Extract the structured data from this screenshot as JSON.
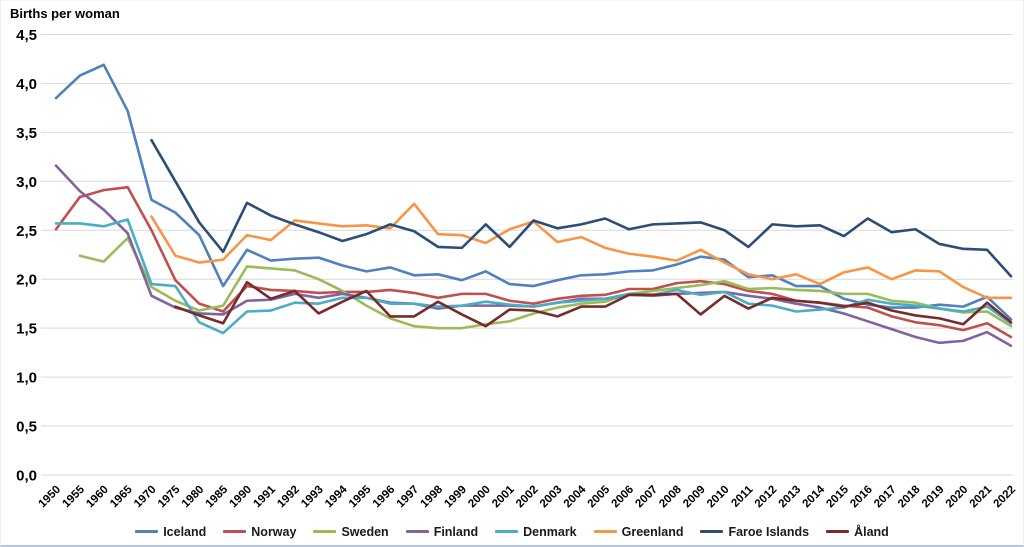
{
  "chart_data": {
    "type": "line",
    "title": "Births per woman",
    "grid": "horizontal",
    "grid_color": "#d9d9d9",
    "legend_position": "bottom",
    "x_tick_rotation": 45,
    "ylim": [
      0,
      4.5
    ],
    "y_ticks": [
      {
        "value": 0.0,
        "label": "0,0"
      },
      {
        "value": 0.5,
        "label": "0,5"
      },
      {
        "value": 1.0,
        "label": "1,0"
      },
      {
        "value": 1.5,
        "label": "1,5"
      },
      {
        "value": 2.0,
        "label": "2,0"
      },
      {
        "value": 2.5,
        "label": "2,5"
      },
      {
        "value": 3.0,
        "label": "3,0"
      },
      {
        "value": 3.5,
        "label": "3,5"
      },
      {
        "value": 4.0,
        "label": "4,0"
      },
      {
        "value": 4.5,
        "label": "4,5"
      }
    ],
    "categories": [
      "1950",
      "1955",
      "1960",
      "1965",
      "1970",
      "1975",
      "1980",
      "1985",
      "1990",
      "1991",
      "1992",
      "1993",
      "1994",
      "1995",
      "1996",
      "1997",
      "1998",
      "1999",
      "2000",
      "2001",
      "2002",
      "2003",
      "2004",
      "2005",
      "2006",
      "2007",
      "2008",
      "2009",
      "2010",
      "2011",
      "2012",
      "2013",
      "2014",
      "2015",
      "2016",
      "2017",
      "2018",
      "2019",
      "2020",
      "2021",
      "2022"
    ],
    "series": [
      {
        "name": "Iceland",
        "color": "#4F81BD",
        "values": [
          3.85,
          4.08,
          4.19,
          3.72,
          2.81,
          2.68,
          2.45,
          1.93,
          2.3,
          2.19,
          2.21,
          2.22,
          2.14,
          2.08,
          2.12,
          2.04,
          2.05,
          1.99,
          2.08,
          1.95,
          1.93,
          1.99,
          2.04,
          2.05,
          2.08,
          2.09,
          2.15,
          2.23,
          2.2,
          2.02,
          2.04,
          1.93,
          1.93,
          1.8,
          1.74,
          1.71,
          1.71,
          1.74,
          1.72,
          1.82,
          1.59
        ]
      },
      {
        "name": "Norway",
        "color": "#C0504D",
        "values": [
          2.51,
          2.84,
          2.91,
          2.94,
          2.5,
          1.99,
          1.75,
          1.67,
          1.93,
          1.89,
          1.88,
          1.86,
          1.87,
          1.87,
          1.89,
          1.86,
          1.81,
          1.85,
          1.85,
          1.78,
          1.75,
          1.8,
          1.83,
          1.84,
          1.9,
          1.9,
          1.96,
          1.98,
          1.95,
          1.88,
          1.85,
          1.78,
          1.76,
          1.73,
          1.71,
          1.62,
          1.56,
          1.53,
          1.48,
          1.55,
          1.41
        ]
      },
      {
        "name": "Sweden",
        "color": "#9BBB59",
        "values": [
          null,
          2.24,
          2.18,
          2.42,
          1.92,
          1.78,
          1.68,
          1.73,
          2.13,
          2.11,
          2.09,
          2.0,
          1.88,
          1.73,
          1.6,
          1.52,
          1.5,
          1.5,
          1.54,
          1.57,
          1.65,
          1.71,
          1.75,
          1.77,
          1.85,
          1.88,
          1.91,
          1.94,
          1.98,
          1.9,
          1.91,
          1.89,
          1.88,
          1.85,
          1.85,
          1.78,
          1.76,
          1.7,
          1.66,
          1.67,
          1.52
        ]
      },
      {
        "name": "Finland",
        "color": "#8064A2",
        "values": [
          3.16,
          2.9,
          2.71,
          2.47,
          1.83,
          1.71,
          1.65,
          1.64,
          1.78,
          1.79,
          1.85,
          1.81,
          1.85,
          1.81,
          1.76,
          1.75,
          1.7,
          1.73,
          1.73,
          1.73,
          1.72,
          1.76,
          1.8,
          1.8,
          1.84,
          1.83,
          1.85,
          1.86,
          1.87,
          1.83,
          1.8,
          1.75,
          1.71,
          1.65,
          1.57,
          1.49,
          1.41,
          1.35,
          1.37,
          1.46,
          1.32
        ]
      },
      {
        "name": "Denmark",
        "color": "#4BACC6",
        "values": [
          2.57,
          2.57,
          2.54,
          2.61,
          1.95,
          1.93,
          1.56,
          1.45,
          1.67,
          1.68,
          1.76,
          1.75,
          1.81,
          1.81,
          1.75,
          1.75,
          1.72,
          1.73,
          1.77,
          1.74,
          1.72,
          1.76,
          1.78,
          1.8,
          1.85,
          1.84,
          1.89,
          1.84,
          1.87,
          1.75,
          1.73,
          1.67,
          1.69,
          1.71,
          1.79,
          1.75,
          1.73,
          1.7,
          1.67,
          1.72,
          1.55
        ]
      },
      {
        "name": "Greenland",
        "color": "#F79646",
        "values": [
          null,
          null,
          null,
          null,
          2.64,
          2.24,
          2.17,
          2.2,
          2.45,
          2.4,
          2.6,
          2.57,
          2.54,
          2.55,
          2.52,
          2.77,
          2.46,
          2.45,
          2.37,
          2.51,
          2.59,
          2.38,
          2.43,
          2.32,
          2.26,
          2.23,
          2.19,
          2.3,
          2.17,
          2.05,
          2.0,
          2.05,
          1.95,
          2.07,
          2.12,
          2.0,
          2.09,
          2.08,
          1.92,
          1.81,
          1.81
        ]
      },
      {
        "name": "Faroe Islands",
        "color": "#2C4D75",
        "values": [
          null,
          null,
          null,
          null,
          3.42,
          3.0,
          2.58,
          2.28,
          2.78,
          2.65,
          2.56,
          2.48,
          2.39,
          2.46,
          2.56,
          2.49,
          2.33,
          2.32,
          2.56,
          2.33,
          2.6,
          2.52,
          2.56,
          2.62,
          2.51,
          2.56,
          2.57,
          2.58,
          2.5,
          2.33,
          2.56,
          2.54,
          2.55,
          2.44,
          2.62,
          2.48,
          2.51,
          2.36,
          2.31,
          2.3,
          2.03
        ]
      },
      {
        "name": "Åland",
        "color": "#772C2A",
        "values": [
          null,
          null,
          null,
          null,
          null,
          1.72,
          1.63,
          1.55,
          1.97,
          1.8,
          1.88,
          1.65,
          1.77,
          1.88,
          1.62,
          1.62,
          1.77,
          1.64,
          1.52,
          1.69,
          1.68,
          1.62,
          1.72,
          1.72,
          1.84,
          1.84,
          1.85,
          1.64,
          1.83,
          1.7,
          1.81,
          1.78,
          1.76,
          1.72,
          1.76,
          1.68,
          1.63,
          1.6,
          1.54,
          1.76,
          1.56
        ]
      }
    ]
  }
}
